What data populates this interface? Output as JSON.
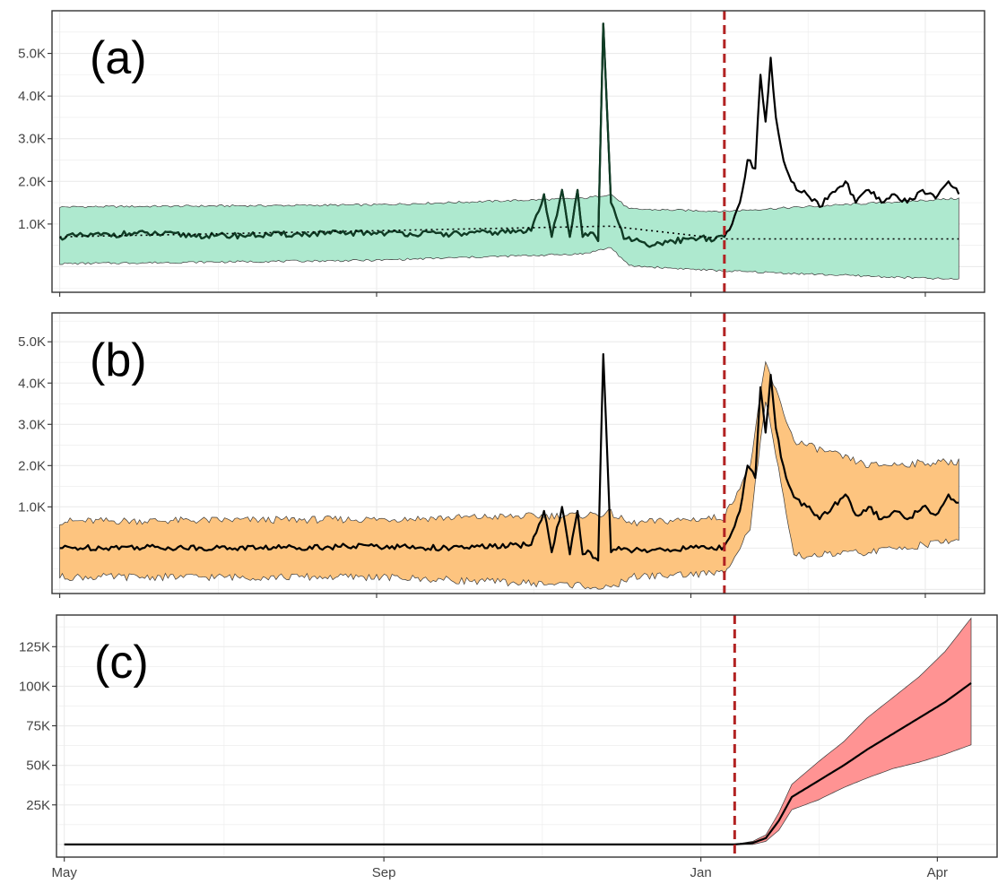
{
  "colors": {
    "band_a": "#aee9cf",
    "band_b": "#fdc47f",
    "band_c": "#ff9393",
    "intervention_line": "#b22222",
    "observed_line": "#000000",
    "counterfactual_line": "#0f3d25"
  },
  "chart_data": [
    {
      "type": "line",
      "panel_label": "(a)",
      "x_axis": {
        "type": "date",
        "range": [
          "2019-04-28",
          "2020-04-24"
        ],
        "tick_dates": [
          "2019-05-01",
          "2019-09-01",
          "2020-01-01",
          "2020-04-01"
        ]
      },
      "ylim": [
        -600,
        6000
      ],
      "y_ticks": [
        {
          "value": 1000,
          "label": "1.0K"
        },
        {
          "value": 2000,
          "label": "2.0K"
        },
        {
          "value": 3000,
          "label": "3.0K"
        },
        {
          "value": 4000,
          "label": "4.0K"
        },
        {
          "value": 5000,
          "label": "5.0K"
        }
      ],
      "intervention_date": "2020-01-14",
      "grid": true,
      "series": [
        {
          "role": "observed",
          "x": [
            "2019-05-01",
            "2019-05-31",
            "2019-06-30",
            "2019-07-31",
            "2019-08-31",
            "2019-09-30",
            "2019-10-31",
            "2019-11-05",
            "2019-11-08",
            "2019-11-12",
            "2019-11-15",
            "2019-11-18",
            "2019-11-20",
            "2019-11-23",
            "2019-11-26",
            "2019-11-28",
            "2019-12-01",
            "2019-12-06",
            "2019-12-10",
            "2019-12-15",
            "2019-12-20",
            "2019-12-25",
            "2019-12-31",
            "2020-01-05",
            "2020-01-10",
            "2020-01-14",
            "2020-01-17",
            "2020-01-20",
            "2020-01-23",
            "2020-01-26",
            "2020-01-28",
            "2020-01-30",
            "2020-02-01",
            "2020-02-03",
            "2020-02-05",
            "2020-02-07",
            "2020-02-09",
            "2020-02-11",
            "2020-02-15",
            "2020-02-20",
            "2020-02-25",
            "2020-03-01",
            "2020-03-05",
            "2020-03-10",
            "2020-03-15",
            "2020-03-20",
            "2020-03-25",
            "2020-03-31",
            "2020-04-05",
            "2020-04-10",
            "2020-04-14"
          ],
          "y": [
            700,
            780,
            720,
            760,
            800,
            760,
            840,
            1700,
            700,
            1800,
            700,
            1800,
            700,
            800,
            600,
            5700,
            1500,
            650,
            620,
            500,
            550,
            600,
            650,
            700,
            620,
            700,
            1000,
            1500,
            2500,
            2300,
            4500,
            3400,
            4900,
            3500,
            2800,
            2300,
            2000,
            1800,
            1700,
            1400,
            1750,
            2000,
            1500,
            1800,
            1500,
            1700,
            1500,
            1800,
            1600,
            2000,
            1700
          ]
        },
        {
          "role": "counterfactual",
          "x": [
            "2019-05-01",
            "2019-12-01",
            "2020-01-14",
            "2020-04-14"
          ],
          "y": [
            700,
            950,
            650,
            650
          ]
        },
        {
          "role": "interval",
          "x": [
            "2019-05-01",
            "2019-08-31",
            "2019-11-20",
            "2019-12-01",
            "2019-12-08",
            "2020-01-14",
            "2020-04-14"
          ],
          "upper": [
            1400,
            1450,
            1600,
            1700,
            1350,
            1300,
            1600
          ],
          "lower": [
            70,
            150,
            300,
            450,
            20,
            -100,
            -300
          ]
        }
      ]
    },
    {
      "type": "line",
      "panel_label": "(b)",
      "x_axis": {
        "type": "date",
        "range": [
          "2019-04-28",
          "2020-04-24"
        ],
        "tick_dates": [
          "2019-05-01",
          "2019-09-01",
          "2020-01-01",
          "2020-04-01"
        ]
      },
      "ylim": [
        -1100,
        5700
      ],
      "y_ticks": [
        {
          "value": 1000,
          "label": "1.0K"
        },
        {
          "value": 2000,
          "label": "2.0K"
        },
        {
          "value": 3000,
          "label": "3.0K"
        },
        {
          "value": 4000,
          "label": "4.0K"
        },
        {
          "value": 5000,
          "label": "5.0K"
        }
      ],
      "intervention_date": "2020-01-14",
      "grid": true,
      "series": [
        {
          "role": "effect",
          "x": [
            "2019-05-01",
            "2019-05-31",
            "2019-06-30",
            "2019-07-31",
            "2019-08-31",
            "2019-09-30",
            "2019-10-31",
            "2019-11-05",
            "2019-11-08",
            "2019-11-12",
            "2019-11-15",
            "2019-11-18",
            "2019-11-20",
            "2019-11-23",
            "2019-11-26",
            "2019-11-28",
            "2019-12-01",
            "2019-12-06",
            "2019-12-10",
            "2019-12-15",
            "2019-12-20",
            "2019-12-25",
            "2019-12-31",
            "2020-01-05",
            "2020-01-10",
            "2020-01-14",
            "2020-01-17",
            "2020-01-20",
            "2020-01-23",
            "2020-01-26",
            "2020-01-28",
            "2020-01-30",
            "2020-02-01",
            "2020-02-03",
            "2020-02-05",
            "2020-02-07",
            "2020-02-09",
            "2020-02-11",
            "2020-02-15",
            "2020-02-20",
            "2020-02-25",
            "2020-03-01",
            "2020-03-05",
            "2020-03-10",
            "2020-03-15",
            "2020-03-20",
            "2020-03-25",
            "2020-03-31",
            "2020-04-05",
            "2020-04-10",
            "2020-04-14"
          ],
          "y": [
            0,
            30,
            0,
            20,
            50,
            0,
            80,
            900,
            -100,
            1000,
            -150,
            900,
            -150,
            -100,
            -300,
            4700,
            -100,
            0,
            -50,
            -100,
            0,
            -50,
            0,
            50,
            -30,
            50,
            400,
            900,
            2000,
            1700,
            3900,
            2800,
            4200,
            2900,
            2200,
            1700,
            1400,
            1200,
            1000,
            700,
            1000,
            1300,
            800,
            1000,
            700,
            900,
            700,
            1000,
            800,
            1300,
            1100
          ]
        },
        {
          "role": "interval",
          "x": [
            "2019-05-01",
            "2019-08-31",
            "2019-11-20",
            "2019-12-01",
            "2019-12-08",
            "2020-01-14",
            "2020-01-24",
            "2020-01-30",
            "2020-02-10",
            "2020-03-10",
            "2020-04-14"
          ],
          "upper": [
            650,
            700,
            800,
            850,
            600,
            750,
            2000,
            4500,
            2600,
            2000,
            2100
          ],
          "lower": [
            -700,
            -700,
            -900,
            -1000,
            -700,
            -600,
            500,
            3600,
            -200,
            -100,
            200
          ]
        }
      ]
    },
    {
      "type": "line",
      "panel_label": "(c)",
      "x_axis": {
        "type": "date",
        "range": [
          "2019-04-28",
          "2020-04-24"
        ],
        "tick_dates": [
          "2019-05-01",
          "2019-09-01",
          "2020-01-01",
          "2020-04-01"
        ],
        "tick_labels": [
          "May",
          "Sep",
          "Jan",
          "Apr"
        ]
      },
      "ylim": [
        -8000,
        145000
      ],
      "y_ticks": [
        {
          "value": 25000,
          "label": "25K"
        },
        {
          "value": 50000,
          "label": "50K"
        },
        {
          "value": 75000,
          "label": "75K"
        },
        {
          "value": 100000,
          "label": "100K"
        },
        {
          "value": 125000,
          "label": "125K"
        }
      ],
      "intervention_date": "2020-01-14",
      "grid": true,
      "series": [
        {
          "role": "cumulative",
          "x": [
            "2019-05-01",
            "2020-01-14",
            "2020-01-21",
            "2020-01-26",
            "2020-01-31",
            "2020-02-05",
            "2020-02-15",
            "2020-02-25",
            "2020-03-05",
            "2020-03-15",
            "2020-03-25",
            "2020-04-04",
            "2020-04-14"
          ],
          "y": [
            0,
            0,
            1000,
            4000,
            15000,
            30000,
            40000,
            50000,
            60000,
            70000,
            80000,
            90000,
            102000
          ]
        },
        {
          "role": "interval",
          "x": [
            "2019-05-01",
            "2020-01-14",
            "2020-01-21",
            "2020-01-26",
            "2020-01-31",
            "2020-02-05",
            "2020-02-15",
            "2020-02-25",
            "2020-03-05",
            "2020-03-15",
            "2020-03-25",
            "2020-04-04",
            "2020-04-14"
          ],
          "upper": [
            0,
            0,
            2000,
            6000,
            20000,
            38000,
            52000,
            65000,
            80000,
            93000,
            106000,
            122000,
            143000
          ],
          "lower": [
            0,
            0,
            0,
            2000,
            9000,
            22000,
            28000,
            36000,
            42000,
            48000,
            52000,
            57000,
            63000
          ]
        }
      ]
    }
  ]
}
